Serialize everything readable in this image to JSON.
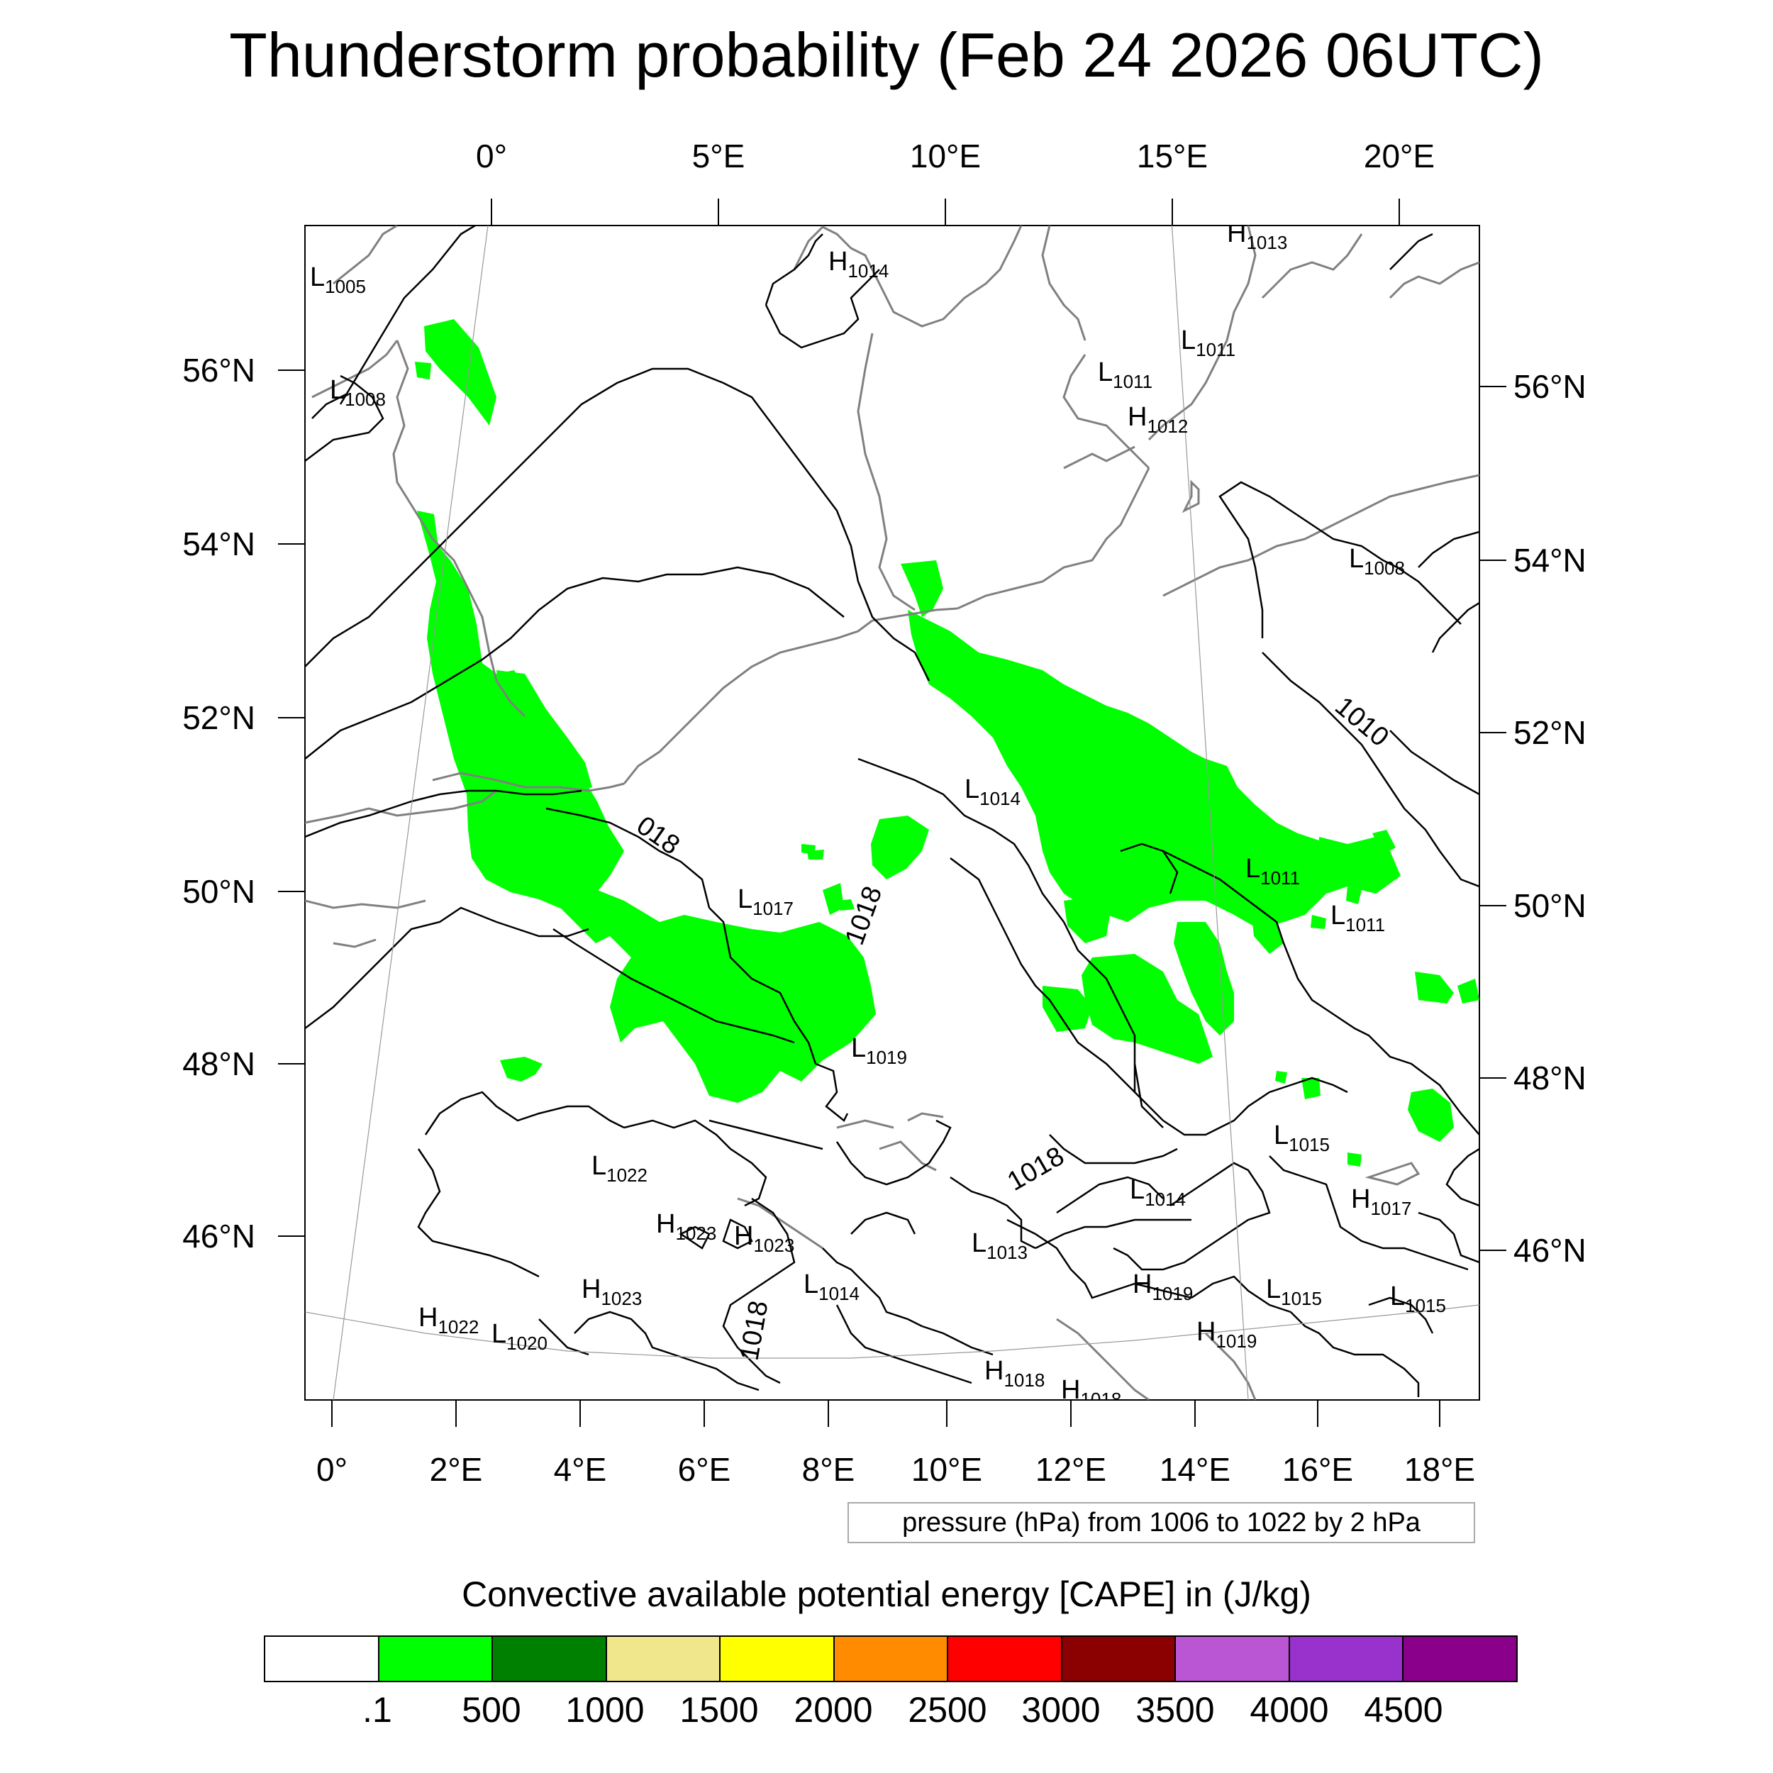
{
  "title": "Thunderstorm probability (Feb 24 2026 06UTC)",
  "map": {
    "top_lon_labels": [
      "0°",
      "5°E",
      "10°E",
      "15°E",
      "20°E"
    ],
    "bottom_lon_labels": [
      "0°",
      "2°E",
      "4°E",
      "6°E",
      "8°E",
      "10°E",
      "12°E",
      "14°E",
      "16°E",
      "18°E"
    ],
    "left_lat_labels": [
      "56°N",
      "54°N",
      "52°N",
      "50°N",
      "48°N",
      "46°N"
    ],
    "right_lat_labels": [
      "56°N",
      "54°N",
      "52°N",
      "50°N",
      "48°N",
      "46°N"
    ],
    "contour_labels": [
      "018",
      "1018",
      "1018",
      "1018",
      "1010"
    ],
    "pressure_centers": [
      {
        "type": "L",
        "value": "1005"
      },
      {
        "type": "L",
        "value": "1008"
      },
      {
        "type": "H",
        "value": "1014"
      },
      {
        "type": "H",
        "value": "1013"
      },
      {
        "type": "L",
        "value": "1011"
      },
      {
        "type": "L",
        "value": "1011"
      },
      {
        "type": "H",
        "value": "1012"
      },
      {
        "type": "L",
        "value": "1008"
      },
      {
        "type": "L",
        "value": "1014"
      },
      {
        "type": "L",
        "value": "1011"
      },
      {
        "type": "L",
        "value": "1011"
      },
      {
        "type": "L",
        "value": "1017"
      },
      {
        "type": "L",
        "value": "1019"
      },
      {
        "type": "L",
        "value": "1022"
      },
      {
        "type": "H",
        "value": "1023"
      },
      {
        "type": "H",
        "value": "1023"
      },
      {
        "type": "H",
        "value": "1023"
      },
      {
        "type": "L",
        "value": "1014"
      },
      {
        "type": "L",
        "value": "1013"
      },
      {
        "type": "L",
        "value": "1014"
      },
      {
        "type": "L",
        "value": "1015"
      },
      {
        "type": "H",
        "value": "1017"
      },
      {
        "type": "L",
        "value": "1015"
      },
      {
        "type": "L",
        "value": "1015"
      },
      {
        "type": "H",
        "value": "1019"
      },
      {
        "type": "H",
        "value": "1019"
      },
      {
        "type": "H",
        "value": "1022"
      },
      {
        "type": "L",
        "value": "1020"
      },
      {
        "type": "H",
        "value": "1018"
      },
      {
        "type": "H",
        "value": "1018"
      }
    ]
  },
  "info_box": "pressure (hPa) from 1006 to 1022 by 2 hPa",
  "colorbar": {
    "title": "Convective available potential energy [CAPE] in (J/kg)",
    "colors": [
      "#ffffff",
      "#00ff00",
      "#008000",
      "#f0e68c",
      "#ffff00",
      "#ff8c00",
      "#ff0000",
      "#8b0000",
      "#ba55d3",
      "#9932cc",
      "#8b008b"
    ],
    "labels": [
      ".1",
      "500",
      "1000",
      "1500",
      "2000",
      "2500",
      "3000",
      "3500",
      "4000",
      "4500"
    ]
  },
  "colors": {
    "cape_fill": "#00ff00",
    "coastline": "#808080",
    "isobar": "#000000"
  }
}
